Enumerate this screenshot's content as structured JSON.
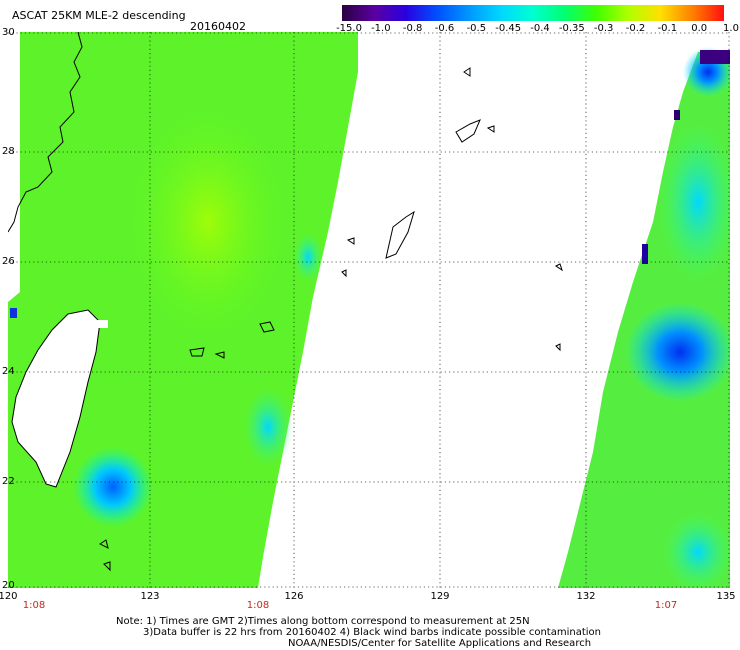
{
  "header": {
    "title": "ASCAT 25KM MLE-2 descending",
    "date": "20160402"
  },
  "colorbar": {
    "labels": [
      "-15.0",
      "-1.0",
      "-0.8",
      "-0.6",
      "-0.5",
      "-0.45",
      "-0.4",
      "-0.35",
      "-0.3",
      "-0.2",
      "-0.1",
      "0.0",
      "1.0"
    ],
    "colors": [
      "#2a0040",
      "#5a00a0",
      "#2a00e0",
      "#0050ff",
      "#0098ff",
      "#00d8ff",
      "#00ffd0",
      "#00ff70",
      "#40ff00",
      "#b0ff00",
      "#ffe000",
      "#ff8000",
      "#ff1010"
    ]
  },
  "axes": {
    "lat_labels": [
      "30",
      "28",
      "26",
      "24",
      "22",
      "20"
    ],
    "lon_labels": [
      "120",
      "123",
      "126",
      "129",
      "132",
      "135"
    ]
  },
  "pass_times": [
    "1:08",
    "1:08",
    "1:07"
  ],
  "notes": {
    "line1": "Note: 1) Times are GMT 2)Times along bottom correspond to measurement at 25N",
    "line2": "3)Data buffer is 22 hrs from 20160402 4) Black wind barbs indicate possible contamination",
    "line3": "NOAA/NESDIS/Center for Satellite Applications and Research"
  }
}
